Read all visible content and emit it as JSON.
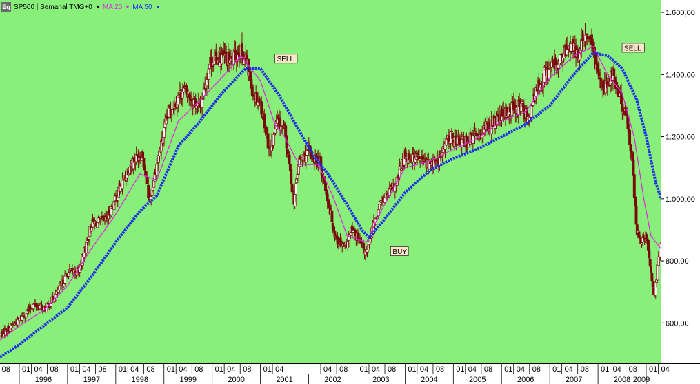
{
  "header": {
    "icon_label": "Eq",
    "symbol": "SP500 | Semanal TMG+0",
    "ma20_label": "MA 20",
    "ma50_label": "MA 50",
    "ma20_color": "#e020e0",
    "ma50_color": "#1f2fe8"
  },
  "colors": {
    "background": "#88f07a",
    "candle_down": "#7a0a0a",
    "candle_up": "#f4f4f4"
  },
  "chart_data": {
    "type": "candlestick",
    "title": "",
    "frequency": "weekly",
    "ylim": [
      470,
      1640
    ],
    "y_ticks": [
      "600,00",
      "800,00",
      "1.000,00",
      "1.200,00",
      "1.400,00",
      "1.600,00"
    ],
    "y_tick_values": [
      600,
      800,
      1000,
      1200,
      1400,
      1600
    ],
    "xlim": [
      1995.6,
      2009.3
    ],
    "x_month_ticks": [
      {
        "t": 1995.58,
        "label": "08"
      },
      {
        "t": 1996.0,
        "label": "01"
      },
      {
        "t": 1996.25,
        "label": "04"
      },
      {
        "t": 1996.58,
        "label": "08"
      },
      {
        "t": 1997.0,
        "label": "01"
      },
      {
        "t": 1997.25,
        "label": "04"
      },
      {
        "t": 1997.58,
        "label": "08"
      },
      {
        "t": 1998.0,
        "label": "01"
      },
      {
        "t": 1998.25,
        "label": "04"
      },
      {
        "t": 1998.58,
        "label": "08"
      },
      {
        "t": 1999.0,
        "label": "01"
      },
      {
        "t": 1999.25,
        "label": "04"
      },
      {
        "t": 1999.58,
        "label": "08"
      },
      {
        "t": 2000.0,
        "label": "01"
      },
      {
        "t": 2000.25,
        "label": "04"
      },
      {
        "t": 2000.58,
        "label": "08"
      },
      {
        "t": 2001.0,
        "label": "01"
      },
      {
        "t": 2001.25,
        "label": "04"
      },
      {
        "t": 2002.25,
        "label": "04"
      },
      {
        "t": 2002.58,
        "label": "08"
      },
      {
        "t": 2003.0,
        "label": "01"
      },
      {
        "t": 2003.25,
        "label": "04"
      },
      {
        "t": 2003.58,
        "label": "08"
      },
      {
        "t": 2004.0,
        "label": "01"
      },
      {
        "t": 2004.25,
        "label": "04"
      },
      {
        "t": 2004.58,
        "label": "08"
      },
      {
        "t": 2005.0,
        "label": "01"
      },
      {
        "t": 2005.25,
        "label": "04"
      },
      {
        "t": 2005.58,
        "label": "08"
      },
      {
        "t": 2006.0,
        "label": "01"
      },
      {
        "t": 2006.25,
        "label": "04"
      },
      {
        "t": 2006.58,
        "label": "08"
      },
      {
        "t": 2007.0,
        "label": "01"
      },
      {
        "t": 2007.25,
        "label": "04"
      },
      {
        "t": 2007.58,
        "label": "08"
      },
      {
        "t": 2008.0,
        "label": "01"
      },
      {
        "t": 2008.25,
        "label": "04"
      },
      {
        "t": 2008.58,
        "label": "08"
      },
      {
        "t": 2009.0,
        "label": "01"
      },
      {
        "t": 2009.25,
        "label": "04"
      }
    ],
    "x_year_ticks": [
      {
        "t": 1996.5,
        "label": "1996"
      },
      {
        "t": 1997.5,
        "label": "1997"
      },
      {
        "t": 1998.5,
        "label": "1998"
      },
      {
        "t": 1999.5,
        "label": "1999"
      },
      {
        "t": 2000.5,
        "label": "2000"
      },
      {
        "t": 2001.5,
        "label": "2001"
      },
      {
        "t": 2002.5,
        "label": "2002"
      },
      {
        "t": 2003.5,
        "label": "2003"
      },
      {
        "t": 2004.5,
        "label": "2004"
      },
      {
        "t": 2005.5,
        "label": "2005"
      },
      {
        "t": 2006.5,
        "label": "2006"
      },
      {
        "t": 2007.5,
        "label": "2007"
      },
      {
        "t": 2008.5,
        "label": "2008"
      },
      {
        "t": 2009.7,
        "label": "2009"
      }
    ],
    "price_path": [
      [
        1995.6,
        560
      ],
      [
        1996.0,
        610
      ],
      [
        1996.3,
        660
      ],
      [
        1996.55,
        645
      ],
      [
        1996.8,
        700
      ],
      [
        1997.0,
        760
      ],
      [
        1997.25,
        770
      ],
      [
        1997.5,
        920
      ],
      [
        1997.8,
        930
      ],
      [
        1998.0,
        1000
      ],
      [
        1998.3,
        1110
      ],
      [
        1998.55,
        1150
      ],
      [
        1998.7,
        990
      ],
      [
        1998.85,
        1110
      ],
      [
        1999.1,
        1280
      ],
      [
        1999.4,
        1350
      ],
      [
        1999.6,
        1320
      ],
      [
        1999.75,
        1290
      ],
      [
        1999.95,
        1440
      ],
      [
        2000.2,
        1460
      ],
      [
        2000.4,
        1440
      ],
      [
        2000.55,
        1480
      ],
      [
        2000.7,
        1450
      ],
      [
        2000.85,
        1340
      ],
      [
        2001.0,
        1310
      ],
      [
        2001.2,
        1150
      ],
      [
        2001.35,
        1250
      ],
      [
        2001.5,
        1220
      ],
      [
        2001.7,
        990
      ],
      [
        2001.8,
        1120
      ],
      [
        2002.0,
        1150
      ],
      [
        2002.25,
        1110
      ],
      [
        2002.45,
        960
      ],
      [
        2002.55,
        880
      ],
      [
        2002.75,
        840
      ],
      [
        2002.9,
        900
      ],
      [
        2003.1,
        850
      ],
      [
        2003.2,
        820
      ],
      [
        2003.35,
        920
      ],
      [
        2003.5,
        990
      ],
      [
        2003.8,
        1040
      ],
      [
        2004.0,
        1140
      ],
      [
        2004.3,
        1130
      ],
      [
        2004.5,
        1110
      ],
      [
        2004.7,
        1120
      ],
      [
        2004.9,
        1200
      ],
      [
        2005.2,
        1180
      ],
      [
        2005.45,
        1200
      ],
      [
        2005.7,
        1230
      ],
      [
        2005.9,
        1250
      ],
      [
        2006.2,
        1290
      ],
      [
        2006.4,
        1300
      ],
      [
        2006.55,
        1260
      ],
      [
        2006.8,
        1380
      ],
      [
        2007.0,
        1420
      ],
      [
        2007.2,
        1440
      ],
      [
        2007.45,
        1500
      ],
      [
        2007.55,
        1460
      ],
      [
        2007.8,
        1530
      ],
      [
        2007.95,
        1440
      ],
      [
        2008.1,
        1360
      ],
      [
        2008.3,
        1400
      ],
      [
        2008.45,
        1330
      ],
      [
        2008.6,
        1250
      ],
      [
        2008.7,
        1150
      ],
      [
        2008.8,
        900
      ],
      [
        2008.9,
        860
      ],
      [
        2009.0,
        880
      ],
      [
        2009.1,
        760
      ],
      [
        2009.17,
        690
      ],
      [
        2009.3,
        860
      ],
      [
        2009.45,
        880
      ]
    ],
    "series": [
      {
        "name": "MA 20",
        "color": "#e020e0",
        "points": [
          [
            1995.6,
            545
          ],
          [
            1996.0,
            590
          ],
          [
            1996.5,
            640
          ],
          [
            1997.0,
            720
          ],
          [
            1997.5,
            840
          ],
          [
            1998.0,
            950
          ],
          [
            1998.5,
            1080
          ],
          [
            1998.85,
            1060
          ],
          [
            1999.3,
            1250
          ],
          [
            1999.7,
            1310
          ],
          [
            2000.2,
            1390
          ],
          [
            2000.6,
            1460
          ],
          [
            2001.0,
            1380
          ],
          [
            2001.3,
            1240
          ],
          [
            2001.5,
            1200
          ],
          [
            2001.8,
            1110
          ],
          [
            2002.2,
            1110
          ],
          [
            2002.5,
            1010
          ],
          [
            2002.8,
            880
          ],
          [
            2003.2,
            860
          ],
          [
            2003.5,
            960
          ],
          [
            2004.0,
            1100
          ],
          [
            2004.5,
            1120
          ],
          [
            2005.0,
            1160
          ],
          [
            2005.5,
            1195
          ],
          [
            2006.0,
            1250
          ],
          [
            2006.5,
            1280
          ],
          [
            2007.0,
            1390
          ],
          [
            2007.5,
            1460
          ],
          [
            2007.9,
            1490
          ],
          [
            2008.2,
            1400
          ],
          [
            2008.5,
            1340
          ],
          [
            2008.75,
            1200
          ],
          [
            2008.95,
            1000
          ],
          [
            2009.1,
            880
          ],
          [
            2009.3,
            840
          ],
          [
            2009.45,
            860
          ]
        ]
      },
      {
        "name": "MA 50",
        "color": "#1f2fe8",
        "points": [
          [
            1995.6,
            490
          ],
          [
            1996.0,
            530
          ],
          [
            1996.5,
            590
          ],
          [
            1997.0,
            650
          ],
          [
            1997.5,
            750
          ],
          [
            1998.0,
            860
          ],
          [
            1998.5,
            960
          ],
          [
            1998.85,
            1010
          ],
          [
            1999.3,
            1170
          ],
          [
            1999.7,
            1240
          ],
          [
            2000.2,
            1340
          ],
          [
            2000.7,
            1420
          ],
          [
            2001.0,
            1420
          ],
          [
            2001.4,
            1330
          ],
          [
            2001.8,
            1220
          ],
          [
            2002.1,
            1140
          ],
          [
            2002.4,
            1080
          ],
          [
            2002.8,
            980
          ],
          [
            2003.1,
            900
          ],
          [
            2003.25,
            875
          ],
          [
            2003.5,
            920
          ],
          [
            2004.0,
            1020
          ],
          [
            2004.5,
            1090
          ],
          [
            2005.0,
            1130
          ],
          [
            2005.5,
            1160
          ],
          [
            2006.0,
            1200
          ],
          [
            2006.5,
            1240
          ],
          [
            2007.0,
            1300
          ],
          [
            2007.5,
            1400
          ],
          [
            2007.9,
            1470
          ],
          [
            2008.2,
            1460
          ],
          [
            2008.5,
            1420
          ],
          [
            2008.8,
            1320
          ],
          [
            2009.0,
            1200
          ],
          [
            2009.2,
            1050
          ],
          [
            2009.45,
            940
          ]
        ]
      }
    ],
    "annotations": [
      {
        "text": "SELL",
        "t": 2001.3,
        "v": 1450
      },
      {
        "text": "BUY",
        "t": 2003.7,
        "v": 830
      },
      {
        "text": "SELL",
        "t": 2008.5,
        "v": 1485
      }
    ]
  }
}
